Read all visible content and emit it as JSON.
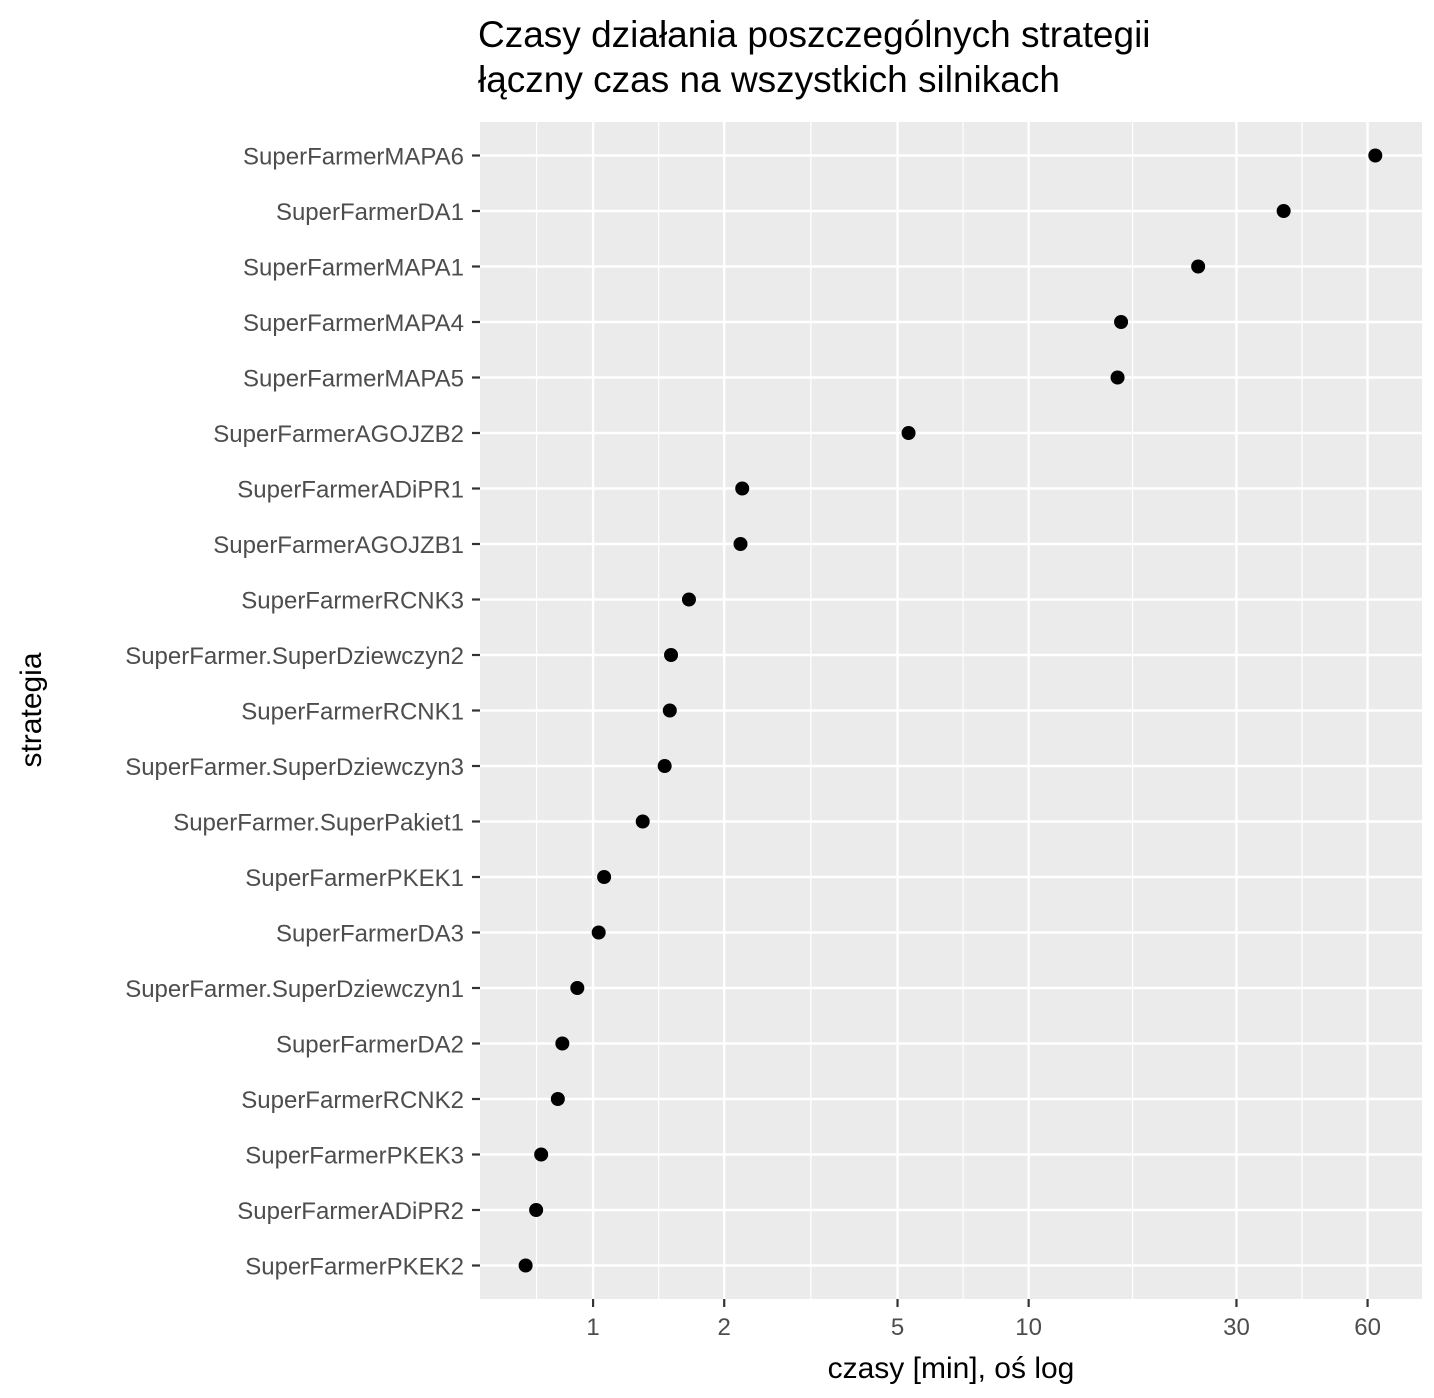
{
  "chart_data": {
    "type": "scatter",
    "title": "Czasy działania poszczególnych strategii",
    "subtitle": "łączny czas na wszystkich silnikach",
    "xlabel": "czasy [min], oś log",
    "ylabel": "strategia",
    "x_scale": "log10",
    "xlim": [
      0.55,
      80
    ],
    "x_ticks": [
      1,
      2,
      5,
      10,
      30,
      60
    ],
    "x_tick_labels": [
      "1",
      "2",
      "5",
      "10",
      "30",
      "60"
    ],
    "grid": true,
    "legend": "none",
    "point_color": "#000000",
    "panel_background": "#ebebeb",
    "gridline_color": "#ffffff",
    "categories": [
      "SuperFarmerMAPA6",
      "SuperFarmerDA1",
      "SuperFarmerMAPA1",
      "SuperFarmerMAPA4",
      "SuperFarmerMAPA5",
      "SuperFarmerAGOJZB2",
      "SuperFarmerADiPR1",
      "SuperFarmerAGOJZB1",
      "SuperFarmerRCNK3",
      "SuperFarmer.SuperDziewczyn2",
      "SuperFarmerRCNK1",
      "SuperFarmer.SuperDziewczyn3",
      "SuperFarmer.SuperPakiet1",
      "SuperFarmerPKEK1",
      "SuperFarmerDA3",
      "SuperFarmer.SuperDziewczyn1",
      "SuperFarmerDA2",
      "SuperFarmerRCNK2",
      "SuperFarmerPKEK3",
      "SuperFarmerADiPR2",
      "SuperFarmerPKEK2"
    ],
    "values": [
      62.5,
      38.5,
      24.5,
      16.3,
      16.0,
      5.3,
      2.2,
      2.18,
      1.66,
      1.51,
      1.5,
      1.46,
      1.3,
      1.06,
      1.03,
      0.92,
      0.85,
      0.83,
      0.76,
      0.74,
      0.7
    ]
  }
}
